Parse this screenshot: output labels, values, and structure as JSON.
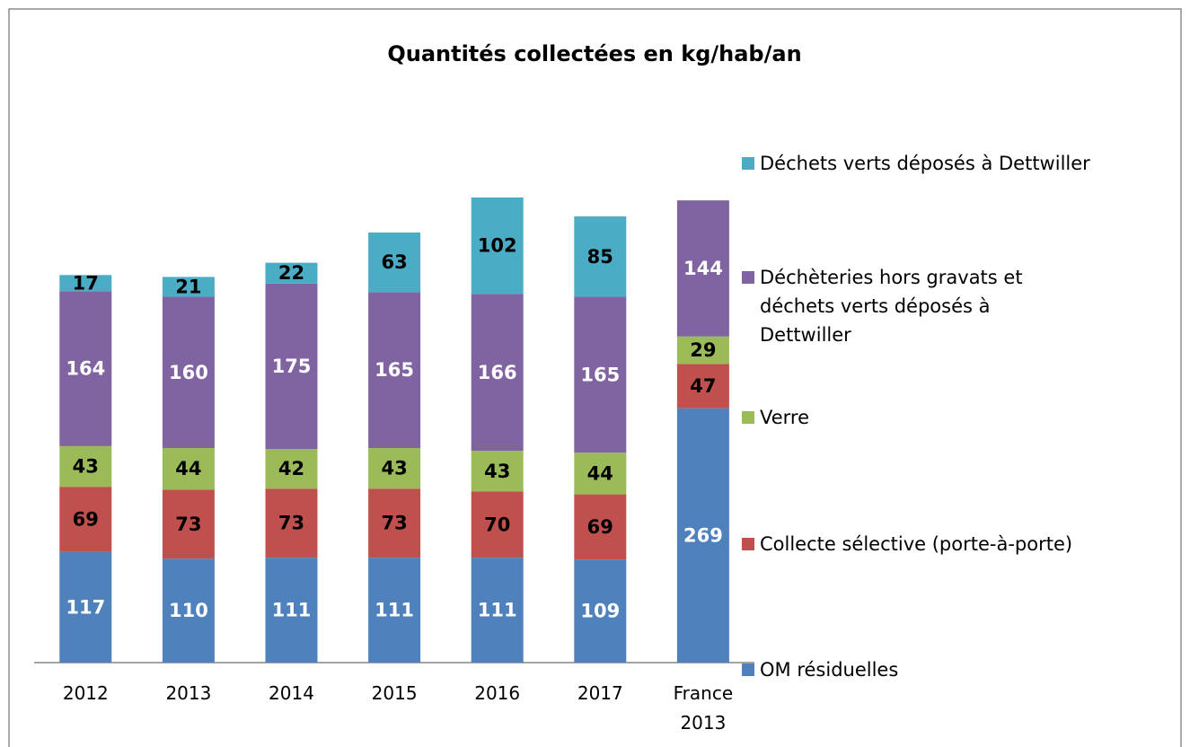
{
  "chart_data": {
    "type": "bar",
    "stacked": true,
    "title": "Quantités collectées en kg/hab/an",
    "categories": [
      "2012",
      "2013",
      "2014",
      "2015",
      "2016",
      "2017",
      "France 2013"
    ],
    "series": [
      {
        "name": "OM résiduelles",
        "color": "#4f81bd",
        "label_color": "#ffffff",
        "values": [
          117,
          110,
          111,
          111,
          111,
          109,
          269
        ]
      },
      {
        "name": "Collecte sélective (porte-à-porte)",
        "color": "#c0504d",
        "label_color": "#000000",
        "values": [
          69,
          73,
          73,
          73,
          70,
          69,
          47
        ]
      },
      {
        "name": "Verre",
        "color": "#9bbb59",
        "label_color": "#000000",
        "values": [
          43,
          44,
          42,
          43,
          43,
          44,
          29
        ]
      },
      {
        "name": "Déchèteries hors gravats et déchets verts déposés à Dettwiller",
        "color": "#8064a2",
        "label_color": "#ffffff",
        "values": [
          164,
          160,
          175,
          165,
          166,
          165,
          144
        ]
      },
      {
        "name": "Déchets verts déposés à Dettwiller",
        "color": "#4bacc6",
        "label_color": "#000000",
        "values": [
          17,
          21,
          22,
          63,
          102,
          85,
          null
        ]
      }
    ],
    "legend": "right"
  }
}
